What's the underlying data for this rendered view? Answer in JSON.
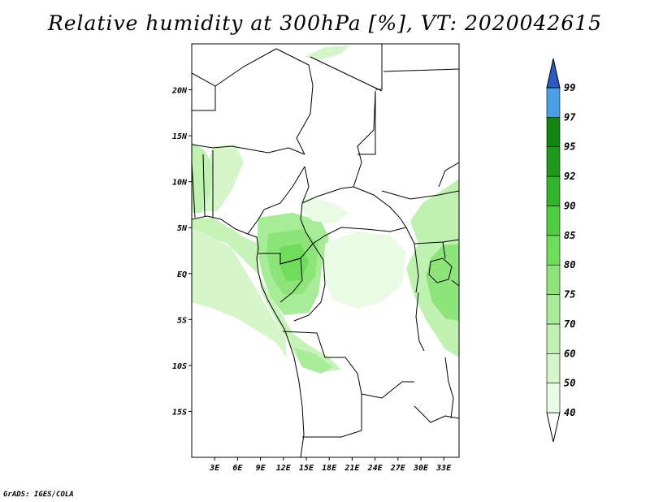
{
  "title": "Relative humidity at 300hPa [%], VT: 2020042615",
  "credit": "GrADS: IGES/COLA",
  "map": {
    "projection": "latlon",
    "lon_range": [
      0,
      35
    ],
    "lat_range": [
      -20,
      25
    ],
    "lat_ticks": [
      {
        "label": "20N",
        "lat": 20
      },
      {
        "label": "15N",
        "lat": 15
      },
      {
        "label": "10N",
        "lat": 10
      },
      {
        "label": "5N",
        "lat": 5
      },
      {
        "label": "EQ",
        "lat": 0
      },
      {
        "label": "5S",
        "lat": -5
      },
      {
        "label": "10S",
        "lat": -10
      },
      {
        "label": "15S",
        "lat": -15
      }
    ],
    "lon_ticks": [
      {
        "label": "3E",
        "lon": 3
      },
      {
        "label": "6E",
        "lon": 6
      },
      {
        "label": "9E",
        "lon": 9
      },
      {
        "label": "12E",
        "lon": 12
      },
      {
        "label": "15E",
        "lon": 15
      },
      {
        "label": "18E",
        "lon": 18
      },
      {
        "label": "21E",
        "lon": 21
      },
      {
        "label": "24E",
        "lon": 24
      },
      {
        "label": "27E",
        "lon": 27
      },
      {
        "label": "30E",
        "lon": 30
      },
      {
        "label": "33E",
        "lon": 33
      }
    ]
  },
  "colorbar": {
    "levels": [
      {
        "label": "40",
        "color": "#e9fbe4"
      },
      {
        "label": "50",
        "color": "#d4f6c9"
      },
      {
        "label": "60",
        "color": "#bff2b0"
      },
      {
        "label": "70",
        "color": "#a7ec96"
      },
      {
        "label": "75",
        "color": "#8de57a"
      },
      {
        "label": "80",
        "color": "#6fdc5a"
      },
      {
        "label": "85",
        "color": "#4fcf40"
      },
      {
        "label": "90",
        "color": "#32b52a"
      },
      {
        "label": "92",
        "color": "#1e9a1a"
      },
      {
        "label": "95",
        "color": "#118510"
      },
      {
        "label": "97",
        "color": "#4a9ee8"
      },
      {
        "label": "99",
        "color": "#2e78d6"
      }
    ],
    "top_color": "#2a5bc4",
    "bottom_color": "#ffffff"
  }
}
